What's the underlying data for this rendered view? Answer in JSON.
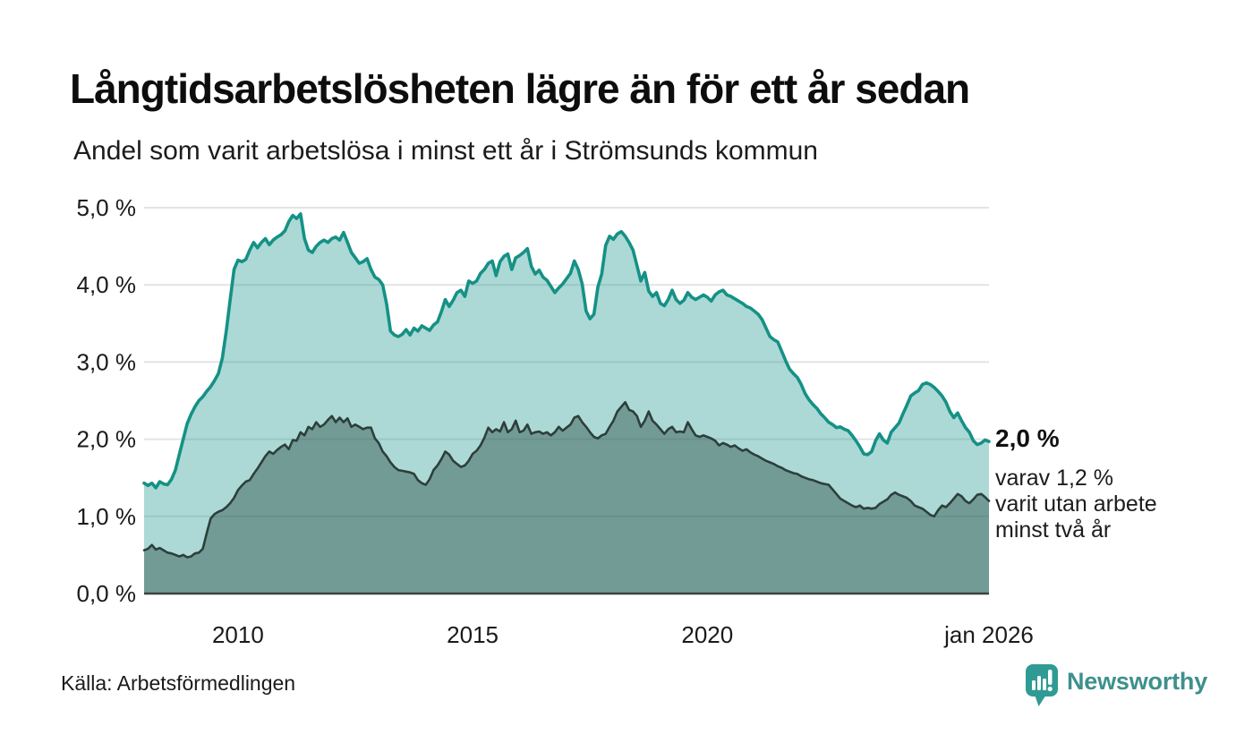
{
  "header": {
    "title": "Långtidsarbetslösheten lägre än för ett år sedan",
    "subtitle": "Andel som varit arbetslösa i minst ett år i Strömsunds kommun"
  },
  "annotation": {
    "value": "2,0 %",
    "lines": [
      "varav 1,2 %",
      "varit utan arbete",
      "minst två år"
    ]
  },
  "footer": {
    "source": "Källa: Arbetsförmedlingen",
    "brand": "Newsworthy"
  },
  "colors": {
    "accent_teal": "#159186",
    "dark_line": "#2d3f3b",
    "light_fill": "rgba(18,145,136,0.35)",
    "dark_fill": "rgba(30,62,56,0.40)",
    "gridline": "#e3e3e7",
    "axis_line": "#3c4242",
    "text": "#1a1a1a",
    "brand_teal": "#2F9B94"
  },
  "chart_data": {
    "type": "area",
    "title": "Långtidsarbetslösheten lägre än för ett år sedan",
    "subtitle": "Andel som varit arbetslösa i minst ett år i Strömsunds kommun",
    "unit": "%",
    "x_monthly_start": "2008-01",
    "x_monthly_end": "2026-01",
    "ylim": [
      0,
      5.15
    ],
    "grid": true,
    "legend": "none",
    "y_ticks": [
      {
        "label": "0,0 %",
        "value": 0
      },
      {
        "label": "1,0 %",
        "value": 1
      },
      {
        "label": "2,0 %",
        "value": 2
      },
      {
        "label": "3,0 %",
        "value": 3
      },
      {
        "label": "4,0 %",
        "value": 4
      },
      {
        "label": "5,0 %",
        "value": 5
      }
    ],
    "x_ticks": [
      {
        "label": "2010",
        "month_index": 24
      },
      {
        "label": "2015",
        "month_index": 84
      },
      {
        "label": "2020",
        "month_index": 144
      },
      {
        "label": "jan 2026",
        "month_index": 216
      }
    ],
    "end_labels": {
      "series_1_latest": "2,0 %",
      "series_2_latest": "1,2 %"
    },
    "series": [
      {
        "name": "Arbetslösa minst ett år",
        "color": "#159186",
        "fill": "rgba(18,145,136,0.35)",
        "values": [
          1.43,
          1.4,
          1.43,
          1.37,
          1.45,
          1.42,
          1.41,
          1.48,
          1.6,
          1.8,
          2.0,
          2.2,
          2.32,
          2.42,
          2.5,
          2.55,
          2.62,
          2.68,
          2.76,
          2.85,
          3.05,
          3.4,
          3.8,
          4.2,
          4.32,
          4.3,
          4.33,
          4.45,
          4.55,
          4.48,
          4.55,
          4.6,
          4.52,
          4.58,
          4.62,
          4.65,
          4.7,
          4.82,
          4.9,
          4.86,
          4.92,
          4.6,
          4.45,
          4.42,
          4.5,
          4.55,
          4.58,
          4.55,
          4.6,
          4.62,
          4.58,
          4.68,
          4.55,
          4.42,
          4.35,
          4.28,
          4.3,
          4.34,
          4.2,
          4.1,
          4.07,
          4.0,
          3.75,
          3.4,
          3.35,
          3.33,
          3.36,
          3.42,
          3.35,
          3.44,
          3.4,
          3.47,
          3.44,
          3.41,
          3.48,
          3.52,
          3.65,
          3.81,
          3.72,
          3.8,
          3.9,
          3.93,
          3.85,
          4.05,
          4.02,
          4.05,
          4.15,
          4.2,
          4.28,
          4.31,
          4.12,
          4.3,
          4.37,
          4.4,
          4.2,
          4.35,
          4.38,
          4.42,
          4.47,
          4.24,
          4.14,
          4.19,
          4.1,
          4.06,
          3.98,
          3.9,
          3.96,
          4.01,
          4.08,
          4.15,
          4.31,
          4.2,
          4.01,
          3.66,
          3.56,
          3.62,
          3.97,
          4.14,
          4.51,
          4.63,
          4.59,
          4.66,
          4.69,
          4.63,
          4.55,
          4.45,
          4.25,
          4.05,
          4.16,
          3.92,
          3.85,
          3.9,
          3.76,
          3.73,
          3.81,
          3.93,
          3.81,
          3.76,
          3.8,
          3.9,
          3.84,
          3.81,
          3.84,
          3.87,
          3.84,
          3.79,
          3.87,
          3.91,
          3.93,
          3.87,
          3.85,
          3.82,
          3.79,
          3.76,
          3.72,
          3.7,
          3.66,
          3.62,
          3.55,
          3.44,
          3.33,
          3.29,
          3.26,
          3.14,
          3.02,
          2.91,
          2.85,
          2.8,
          2.71,
          2.59,
          2.51,
          2.45,
          2.4,
          2.33,
          2.28,
          2.22,
          2.19,
          2.15,
          2.16,
          2.13,
          2.11,
          2.05,
          1.98,
          1.9,
          1.81,
          1.8,
          1.84,
          1.98,
          2.07,
          1.99,
          1.95,
          2.09,
          2.15,
          2.21,
          2.33,
          2.44,
          2.56,
          2.6,
          2.63,
          2.71,
          2.73,
          2.71,
          2.67,
          2.62,
          2.56,
          2.48,
          2.36,
          2.28,
          2.34,
          2.24,
          2.15,
          2.09,
          1.98,
          1.93,
          1.95,
          1.99,
          1.97
        ]
      },
      {
        "name": "varav arbetslösa minst två år",
        "color": "#2d3f3b",
        "fill": "rgba(30,62,56,0.40)",
        "values": [
          0.56,
          0.58,
          0.63,
          0.57,
          0.59,
          0.56,
          0.53,
          0.52,
          0.5,
          0.48,
          0.5,
          0.47,
          0.48,
          0.52,
          0.53,
          0.58,
          0.78,
          0.97,
          1.03,
          1.06,
          1.08,
          1.12,
          1.17,
          1.24,
          1.34,
          1.4,
          1.45,
          1.47,
          1.55,
          1.62,
          1.7,
          1.78,
          1.84,
          1.81,
          1.86,
          1.9,
          1.93,
          1.87,
          1.99,
          1.98,
          2.09,
          2.05,
          2.16,
          2.13,
          2.22,
          2.16,
          2.19,
          2.25,
          2.3,
          2.22,
          2.28,
          2.22,
          2.27,
          2.16,
          2.19,
          2.16,
          2.13,
          2.15,
          2.15,
          2.01,
          1.95,
          1.84,
          1.78,
          1.7,
          1.64,
          1.6,
          1.59,
          1.58,
          1.57,
          1.55,
          1.47,
          1.43,
          1.41,
          1.48,
          1.6,
          1.66,
          1.74,
          1.84,
          1.8,
          1.72,
          1.68,
          1.64,
          1.66,
          1.72,
          1.81,
          1.85,
          1.92,
          2.02,
          2.15,
          2.09,
          2.13,
          2.1,
          2.22,
          2.09,
          2.13,
          2.24,
          2.09,
          2.11,
          2.19,
          2.07,
          2.09,
          2.1,
          2.07,
          2.09,
          2.05,
          2.09,
          2.16,
          2.11,
          2.15,
          2.19,
          2.28,
          2.3,
          2.22,
          2.16,
          2.09,
          2.03,
          2.01,
          2.05,
          2.07,
          2.16,
          2.24,
          2.36,
          2.42,
          2.48,
          2.38,
          2.36,
          2.3,
          2.16,
          2.24,
          2.36,
          2.24,
          2.19,
          2.13,
          2.07,
          2.13,
          2.16,
          2.09,
          2.1,
          2.09,
          2.22,
          2.13,
          2.05,
          2.03,
          2.05,
          2.03,
          2.01,
          1.98,
          1.92,
          1.95,
          1.93,
          1.9,
          1.92,
          1.88,
          1.85,
          1.87,
          1.83,
          1.8,
          1.78,
          1.75,
          1.72,
          1.7,
          1.68,
          1.65,
          1.63,
          1.6,
          1.58,
          1.56,
          1.55,
          1.52,
          1.5,
          1.48,
          1.47,
          1.45,
          1.43,
          1.42,
          1.41,
          1.35,
          1.29,
          1.23,
          1.2,
          1.17,
          1.14,
          1.12,
          1.14,
          1.1,
          1.11,
          1.1,
          1.11,
          1.16,
          1.19,
          1.22,
          1.28,
          1.31,
          1.28,
          1.26,
          1.24,
          1.2,
          1.14,
          1.12,
          1.1,
          1.06,
          1.02,
          1.0,
          1.08,
          1.14,
          1.12,
          1.17,
          1.23,
          1.29,
          1.26,
          1.2,
          1.17,
          1.22,
          1.28,
          1.29,
          1.25,
          1.2
        ]
      }
    ]
  }
}
